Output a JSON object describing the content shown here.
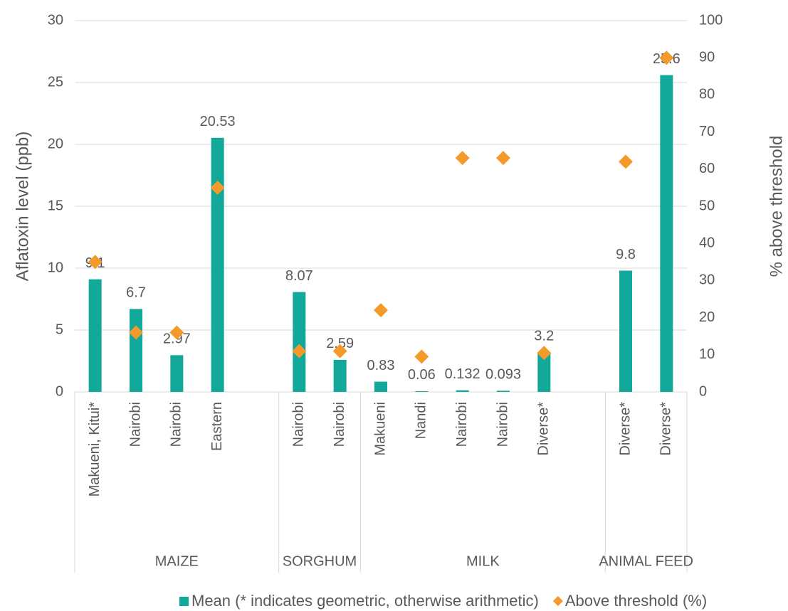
{
  "chart_data": {
    "type": "bar",
    "y_label": "Aflatoxin level (ppb)",
    "y2_label": "% above threshold",
    "categories": [
      "Makueni, Kitui*",
      "Nairobi",
      "Nairobi",
      "Eastern",
      null,
      "Nairobi",
      "Nairobi",
      "Makueni",
      "Nandi",
      "Nairobi",
      "Nairobi",
      "Diverse*",
      null,
      "Diverse*",
      "Diverse*"
    ],
    "groups": [
      {
        "name": "MAIZE",
        "size": 5
      },
      {
        "name": "SORGHUM",
        "size": 2
      },
      {
        "name": "MILK",
        "size": 6
      },
      {
        "name": "ANIMAL FEED",
        "size": 2
      }
    ],
    "series": [
      {
        "name": "Mean (* indicates geometric, otherwise arithmetic)",
        "type": "bar",
        "color": "#12a89a",
        "values": [
          9.1,
          6.7,
          2.97,
          20.53,
          null,
          8.07,
          2.59,
          0.83,
          0.06,
          0.132,
          0.093,
          3.2,
          null,
          9.8,
          25.6
        ]
      },
      {
        "name": "Above threshold (%)",
        "type": "scatter",
        "axis": "y2",
        "color": "#f39a2b",
        "values": [
          35,
          16,
          16,
          55,
          null,
          11,
          11,
          22,
          9.5,
          63,
          63,
          10.5,
          null,
          62,
          90
        ]
      }
    ],
    "ylim": [
      0,
      30
    ],
    "yticks": [
      0,
      5,
      10,
      15,
      20,
      25,
      30
    ],
    "y2lim": [
      0,
      100
    ],
    "y2ticks": [
      0,
      10,
      20,
      30,
      40,
      50,
      60,
      70,
      80,
      90,
      100
    ],
    "grid": true,
    "legend": "bottom"
  }
}
